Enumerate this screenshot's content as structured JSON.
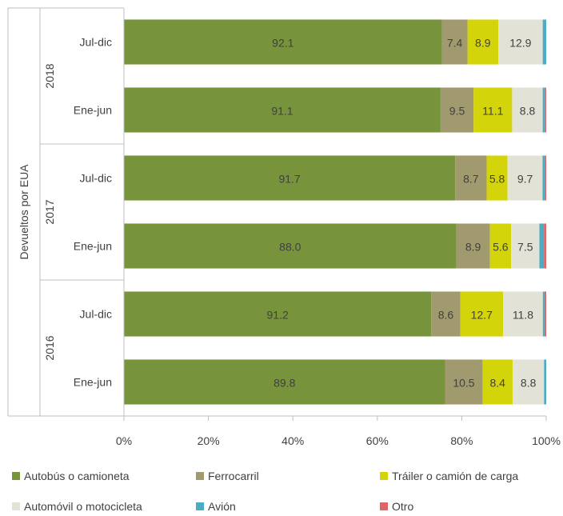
{
  "chart_data": {
    "type": "bar",
    "orientation": "horizontal",
    "stacked": "percent",
    "y_axis_title": "Devueltos por EUA",
    "groups": [
      {
        "label": "2018",
        "rows": [
          {
            "label": "Jul-dic",
            "values": [
              92.1,
              7.4,
              8.9,
              12.9,
              1.0,
              0.0
            ]
          },
          {
            "label": "Ene-jun",
            "values": [
              91.1,
              9.5,
              11.1,
              8.8,
              0.7,
              0.3
            ]
          }
        ]
      },
      {
        "label": "2017",
        "rows": [
          {
            "label": "Jul-dic",
            "values": [
              91.7,
              8.7,
              5.8,
              9.7,
              0.6,
              0.4
            ]
          },
          {
            "label": "Ene-jun",
            "values": [
              88.0,
              8.9,
              5.6,
              7.5,
              1.2,
              0.6
            ]
          }
        ]
      },
      {
        "label": "2016",
        "rows": [
          {
            "label": "Jul-dic",
            "values": [
              91.2,
              8.6,
              12.7,
              11.8,
              0.5,
              0.5
            ]
          },
          {
            "label": "Ene-jun",
            "values": [
              89.8,
              10.5,
              8.4,
              8.8,
              0.6,
              0.0
            ]
          }
        ]
      }
    ],
    "series": [
      {
        "name": "Autobús o camioneta",
        "color": "#77933c"
      },
      {
        "name": "Ferrocarril",
        "color": "#a19a6e"
      },
      {
        "name": "Tráiler o camión de carga",
        "color": "#d4d40b"
      },
      {
        "name": "Automóvil o motocicleta",
        "color": "#e3e2d6"
      },
      {
        "name": "Avión",
        "color": "#4bacc6"
      },
      {
        "name": "Otro",
        "color": "#e06666"
      }
    ],
    "labeled_series": [
      0,
      1,
      2,
      3
    ],
    "x_ticks": [
      "0%",
      "20%",
      "40%",
      "60%",
      "80%",
      "100%"
    ],
    "xlim": [
      0,
      100
    ],
    "grid": false,
    "legend_position": "bottom"
  }
}
